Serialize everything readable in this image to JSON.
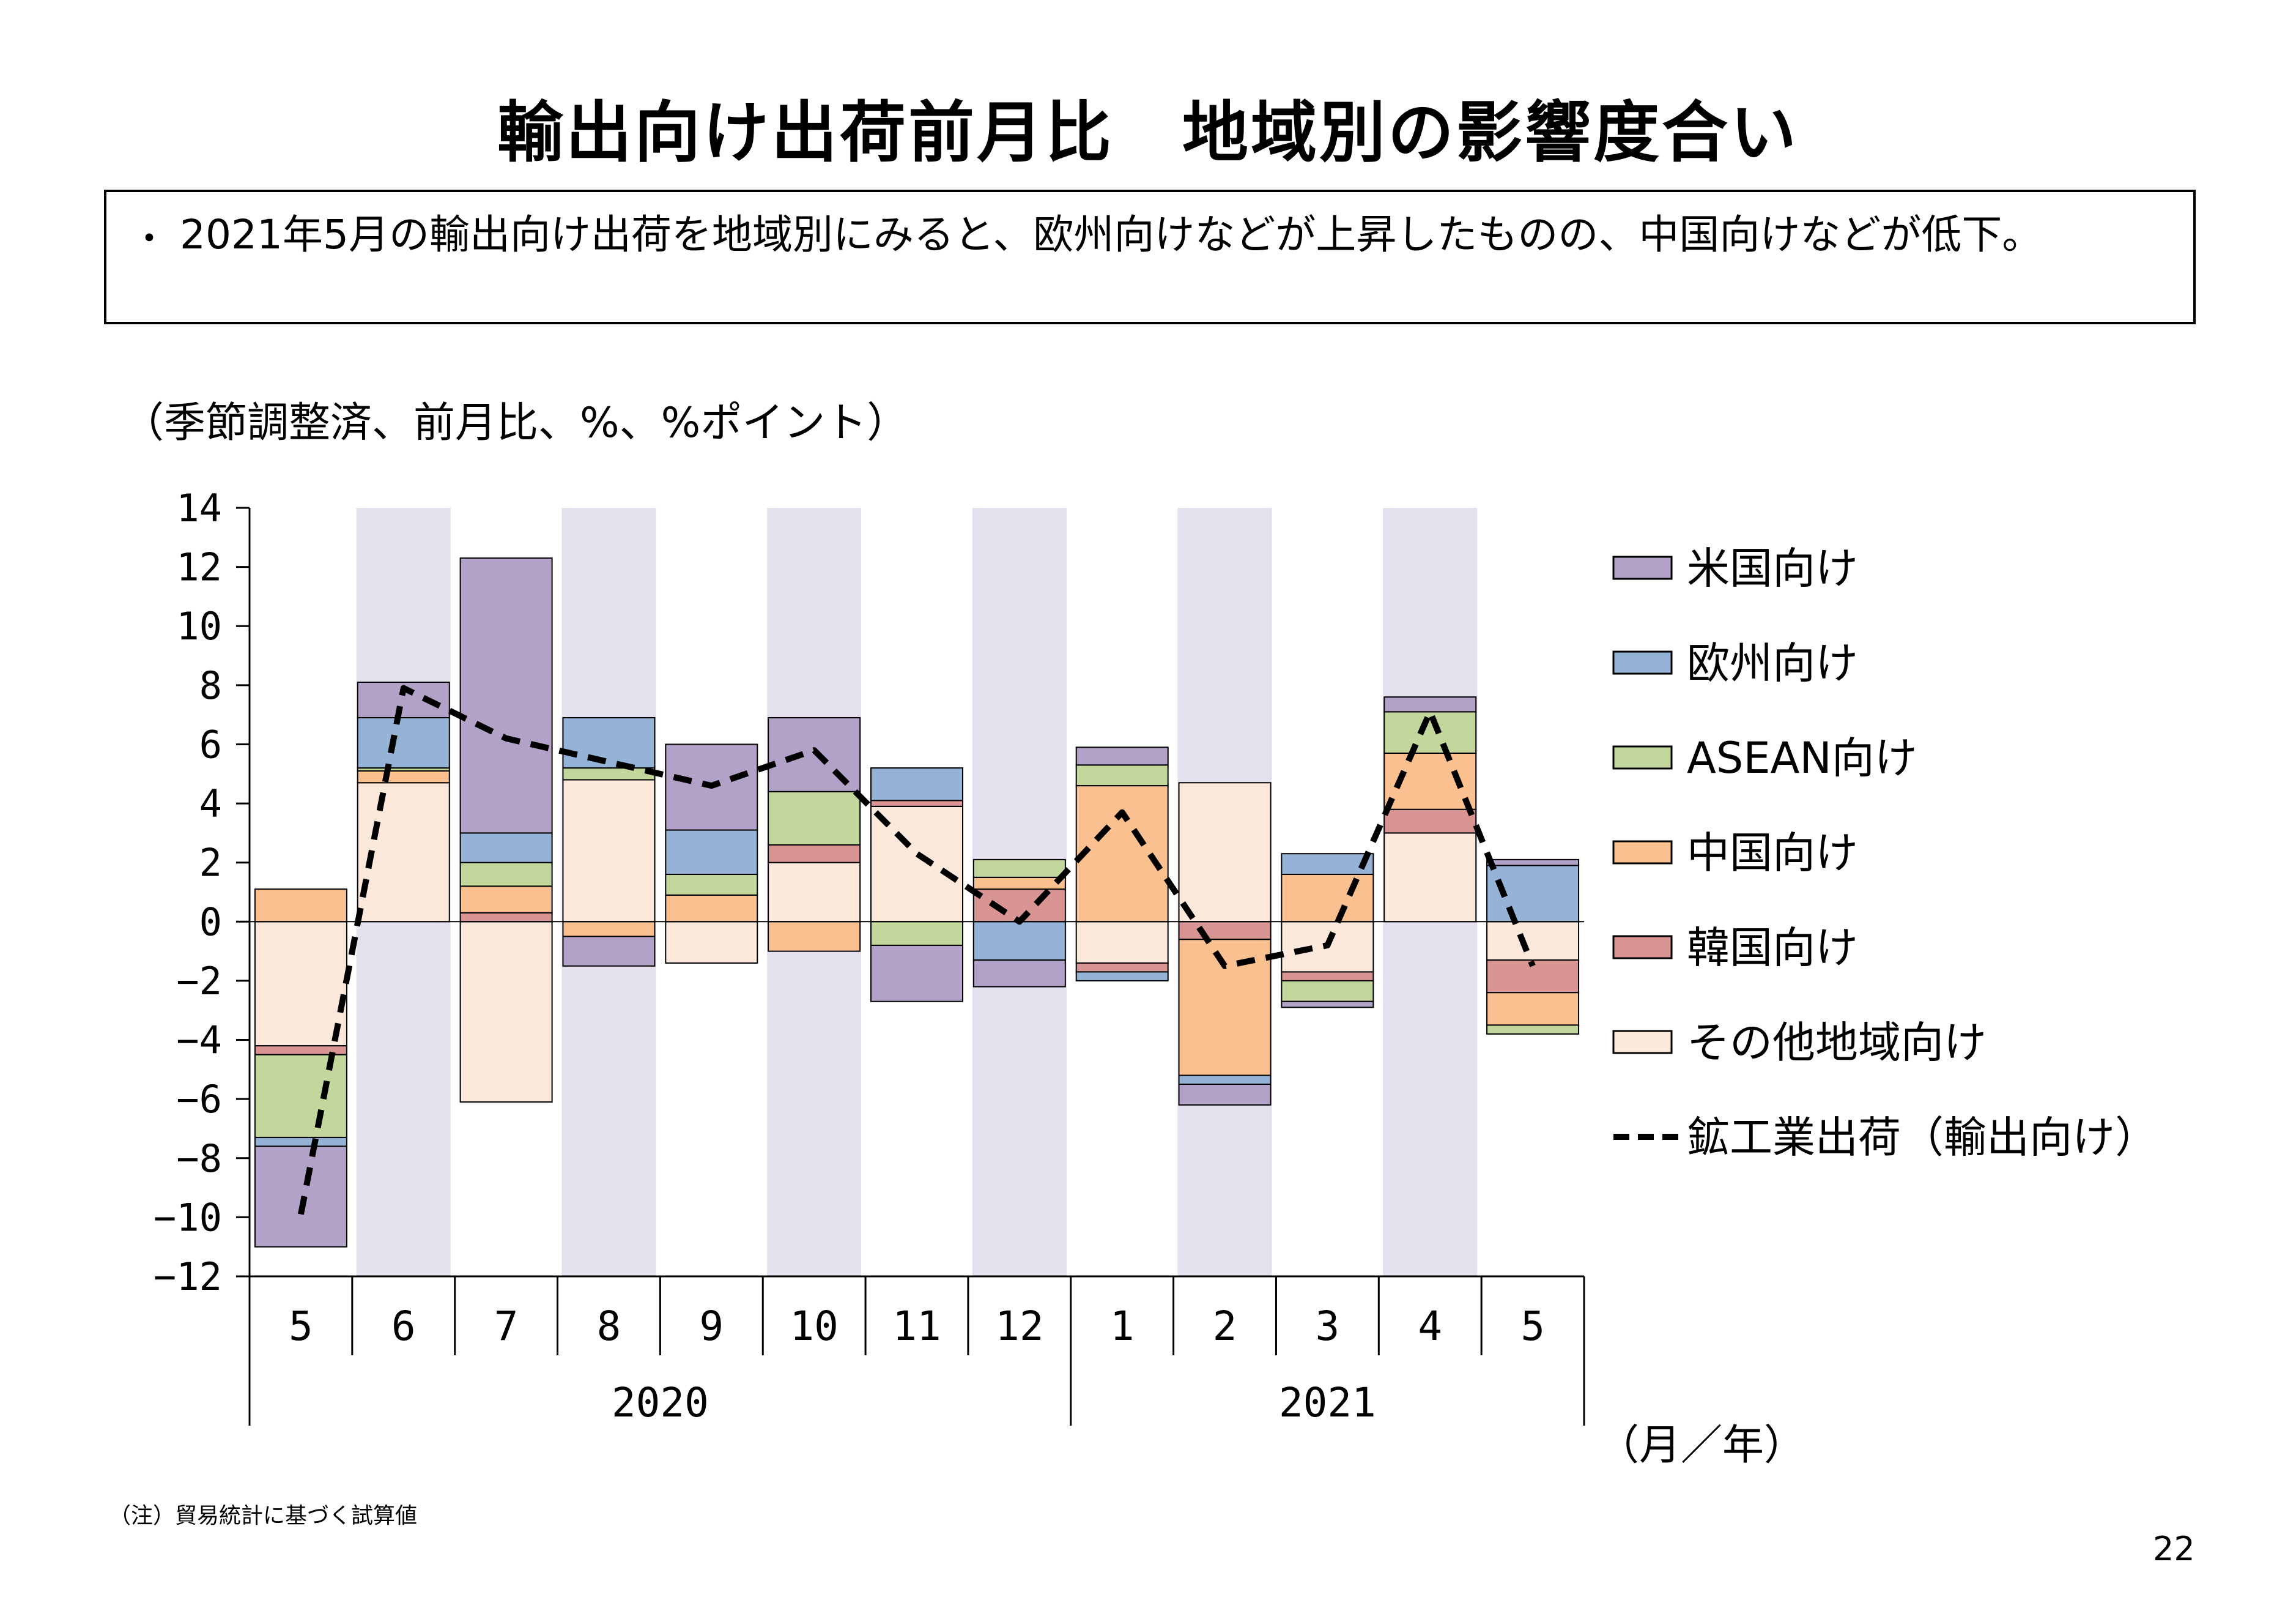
{
  "title": "輸出向け出荷前月比　地域別の影響度合い",
  "summary": {
    "bullet": "・",
    "text": "2021年5月の輸出向け出荷を地域別にみると、欧州向けなどが上昇したものの、中国向けなどが低下。"
  },
  "unit_note": "（季節調整済、前月比、%、%ポイント）",
  "footnote": "（注）貿易統計に基づく試算値",
  "page_number": "22",
  "chart_data": {
    "type": "bar",
    "stacked": true,
    "ylim": [
      -12,
      14
    ],
    "yticks": [
      14,
      12,
      10,
      8,
      6,
      4,
      2,
      0,
      -2,
      -4,
      -6,
      -8,
      -10,
      -12
    ],
    "categories": [
      "5",
      "6",
      "7",
      "8",
      "9",
      "10",
      "11",
      "12",
      "1",
      "2",
      "3",
      "4",
      "5"
    ],
    "years": [
      {
        "label": "2020",
        "start": 0,
        "end": 7
      },
      {
        "label": "2021",
        "start": 8,
        "end": 12
      }
    ],
    "x_unit_label": "（月／年）",
    "shaded_categories": [
      1,
      3,
      5,
      7,
      9,
      11
    ],
    "shade_color": "#e4e0ee",
    "series": [
      {
        "name": "その他地域向け",
        "color": "#fde9dc",
        "values": [
          -4.2,
          4.7,
          -6.1,
          4.8,
          -1.4,
          2.0,
          3.9,
          0.0,
          -1.4,
          4.7,
          -1.7,
          3.0,
          -1.3
        ]
      },
      {
        "name": "韓国向け",
        "color": "#d99594",
        "values": [
          -0.3,
          0.0,
          0.3,
          0.0,
          0.0,
          0.6,
          0.2,
          1.1,
          -0.3,
          -0.6,
          -0.3,
          0.8,
          -1.1
        ]
      },
      {
        "name": "中国向け",
        "color": "#fac08f",
        "values": [
          1.1,
          0.4,
          0.9,
          -0.5,
          0.9,
          -1.0,
          0.0,
          0.4,
          4.6,
          -4.6,
          1.6,
          1.9,
          -1.1
        ]
      },
      {
        "name": "ASEAN向け",
        "color": "#c3d69b",
        "values": [
          -2.8,
          0.1,
          0.8,
          0.4,
          0.7,
          1.8,
          -0.8,
          0.6,
          0.7,
          0.0,
          -0.7,
          1.4,
          -0.3
        ]
      },
      {
        "name": "欧州向け",
        "color": "#95b3d7",
        "values": [
          -0.3,
          1.7,
          1.0,
          1.7,
          1.5,
          0.0,
          1.1,
          -1.3,
          -0.3,
          -0.3,
          0.7,
          0.0,
          1.9
        ]
      },
      {
        "name": "米国向け",
        "color": "#b2a2c7",
        "values": [
          -3.4,
          1.2,
          9.3,
          -1.0,
          2.9,
          2.5,
          -1.9,
          -0.9,
          0.6,
          -0.7,
          -0.2,
          0.5,
          0.2
        ]
      }
    ],
    "line": {
      "name": "鉱工業出荷（輸出向け）",
      "color": "#000000",
      "style": "dashed",
      "values": [
        -9.9,
        7.9,
        6.2,
        5.4,
        4.6,
        5.8,
        2.3,
        0.0,
        3.7,
        -1.5,
        -0.8,
        7.1,
        -1.5
      ]
    },
    "legend_order": [
      "米国向け",
      "欧州向け",
      "ASEAN向け",
      "中国向け",
      "韓国向け",
      "その他地域向け",
      "鉱工業出荷（輸出向け）"
    ],
    "legend_position": "right"
  }
}
